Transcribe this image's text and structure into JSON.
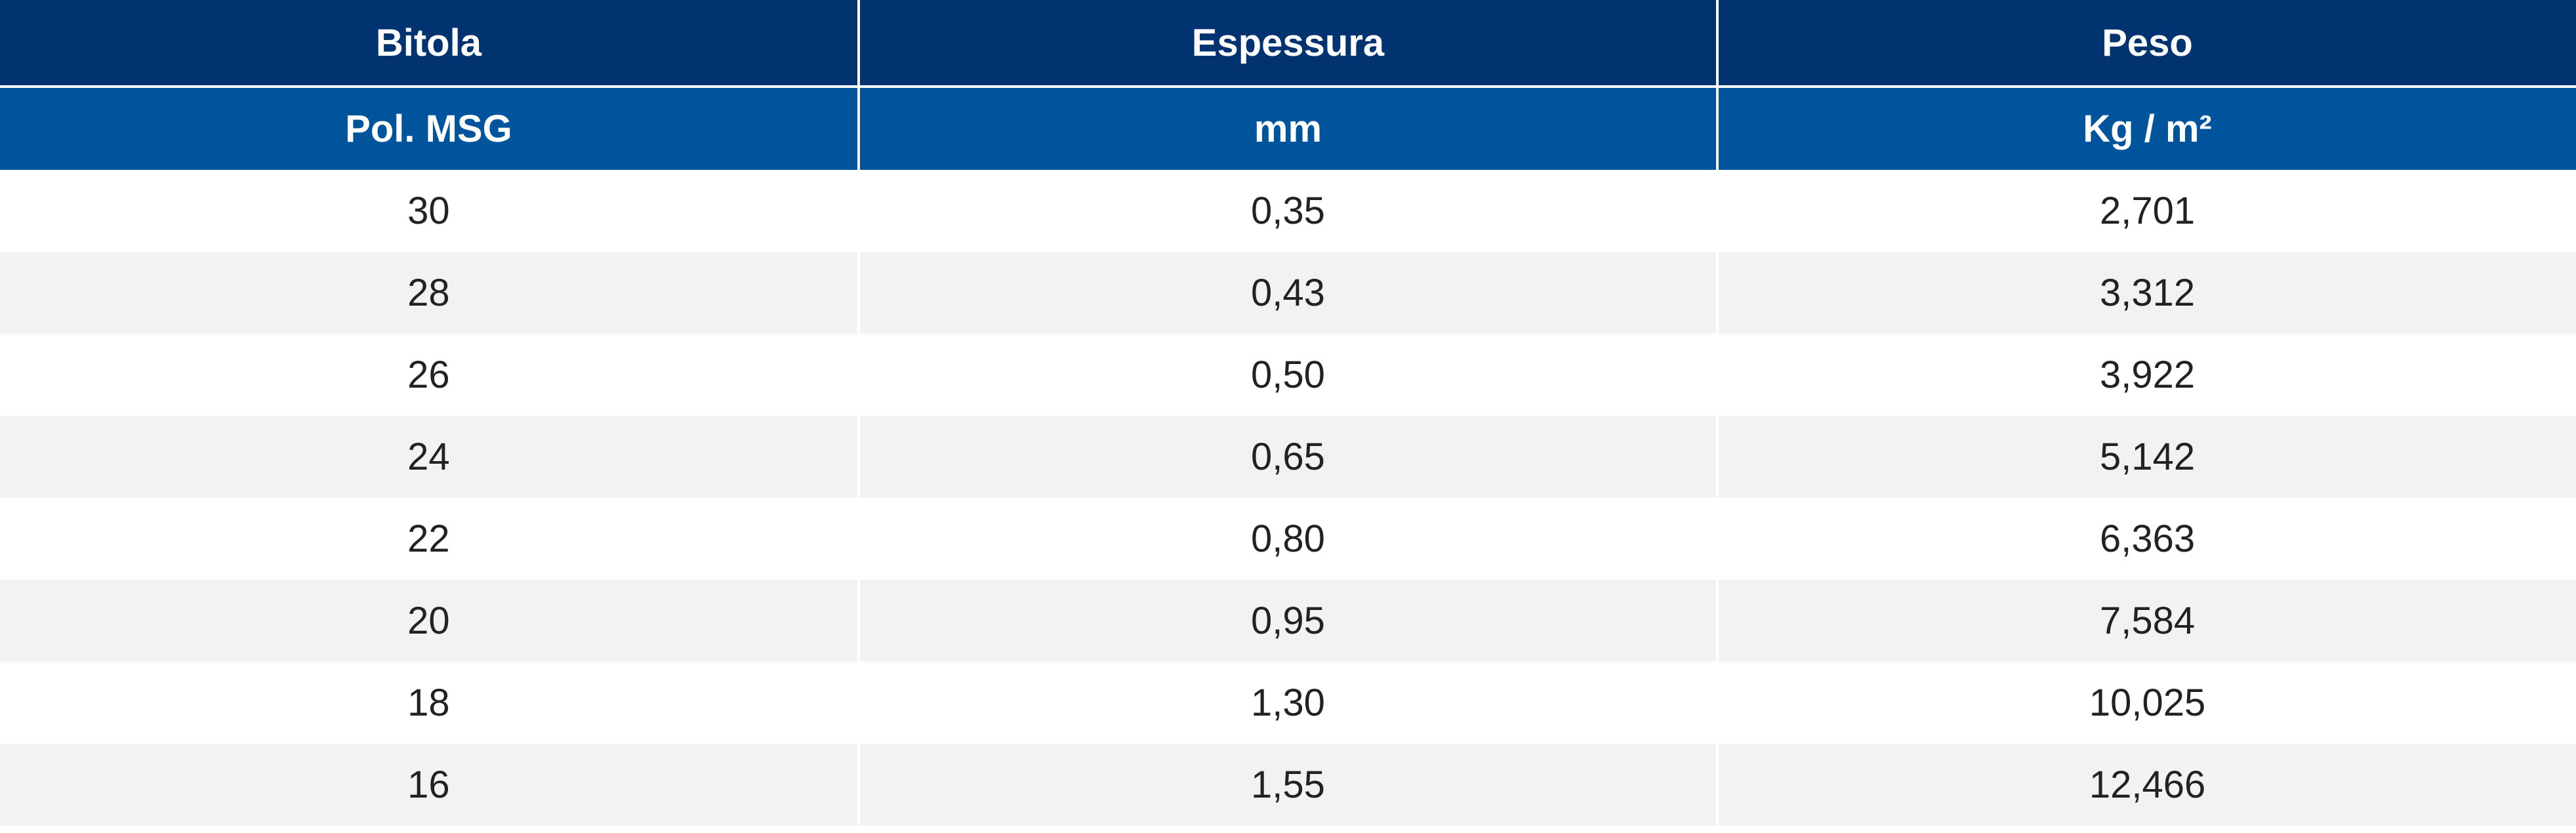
{
  "table": {
    "header": [
      [
        "Bitola",
        "Espessura",
        "Peso"
      ],
      [
        "Pol. MSG",
        "mm",
        "Kg / m²"
      ]
    ],
    "rows": [
      [
        "30",
        "0,35",
        "2,701"
      ],
      [
        "28",
        "0,43",
        "3,312"
      ],
      [
        "26",
        "0,50",
        "3,922"
      ],
      [
        "24",
        "0,65",
        "5,142"
      ],
      [
        "22",
        "0,80",
        "6,363"
      ],
      [
        "20",
        "0,95",
        "7,584"
      ],
      [
        "18",
        "1,30",
        "10,025"
      ],
      [
        "16",
        "1,55",
        "12,466"
      ]
    ]
  }
}
